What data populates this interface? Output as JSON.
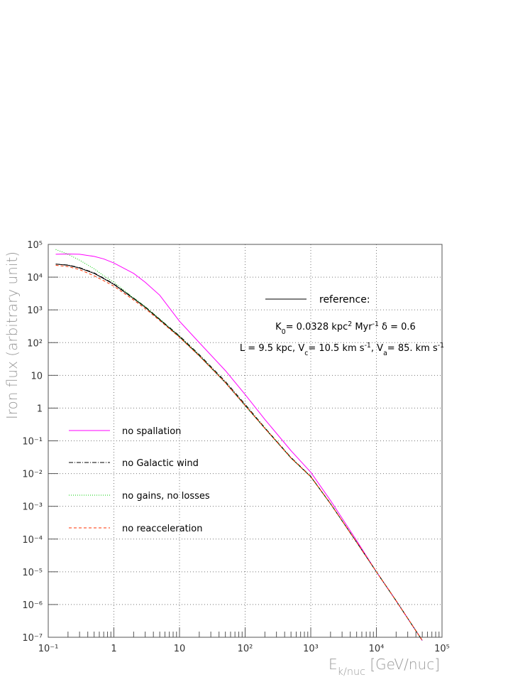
{
  "chart_data": {
    "type": "line",
    "x_label": [
      {
        "text": "E"
      },
      {
        "sub": "k/nuc"
      },
      {
        "text": " [GeV/nuc]"
      }
    ],
    "y_label": "Iron flux (arbitrary unit)",
    "annotations": [
      [
        {
          "text": "K"
        },
        {
          "sub": "0"
        },
        {
          "text": "= 0.0328 kpc"
        },
        {
          "sup": "2"
        },
        {
          "text": " Myr"
        },
        {
          "sup": "-1"
        },
        {
          "text": "   δ = 0.6"
        }
      ],
      [
        {
          "text": "L = 9.5 kpc, V"
        },
        {
          "sub": "c"
        },
        {
          "text": "= 10.5 km s"
        },
        {
          "sup": "-1"
        },
        {
          "text": ", V"
        },
        {
          "sub": "a"
        },
        {
          "text": "= 85. km s"
        },
        {
          "sup": "-1"
        }
      ]
    ],
    "x": [
      0.13,
      0.2,
      0.3,
      0.5,
      0.7,
      1,
      2,
      3,
      5,
      10,
      20,
      50,
      100,
      200,
      500,
      1000,
      2000,
      5000,
      10000,
      20000,
      50000
    ],
    "series": [
      {
        "name": "reference:",
        "color": "#000000",
        "values": [
          25000,
          23000,
          19000,
          13000,
          9000,
          6000,
          2200,
          1200,
          500,
          150,
          40,
          6,
          1.2,
          0.24,
          0.03,
          0.008,
          0.0012,
          8e-05,
          1e-05,
          1.3e-06,
          8e-08
        ]
      },
      {
        "name": "no spallation",
        "color": "#ff00ff",
        "values": [
          50000,
          51000,
          50000,
          43000,
          36000,
          27000,
          13000,
          7000,
          2800,
          450,
          100,
          14,
          2.6,
          0.45,
          0.05,
          0.011,
          0.0015,
          9e-05,
          1e-05,
          1.3e-06,
          8e-08
        ]
      },
      {
        "name": "no Galactic wind",
        "color": "#000000",
        "values": [
          25000,
          23500,
          19500,
          13500,
          9300,
          6200,
          2300,
          1250,
          520,
          160,
          43,
          6.5,
          1.3,
          0.25,
          0.031,
          0.0082,
          0.0012,
          8e-05,
          1e-05,
          1.3e-06,
          8e-08
        ]
      },
      {
        "name": "no gains, no losses",
        "color": "#00cc00",
        "values": [
          70000,
          50000,
          33000,
          18000,
          11000,
          7000,
          2300,
          1250,
          520,
          155,
          41,
          6.1,
          1.2,
          0.24,
          0.03,
          0.008,
          0.0012,
          8e-05,
          1e-05,
          1.3e-06,
          8e-08
        ]
      },
      {
        "name": "no reacceleration",
        "color": "#ff3300",
        "values": [
          23000,
          21000,
          17000,
          11000,
          7800,
          5300,
          2000,
          1100,
          470,
          145,
          39,
          6,
          1.2,
          0.24,
          0.03,
          0.008,
          0.0012,
          8e-05,
          1e-05,
          1.3e-06,
          8e-08
        ]
      }
    ],
    "log_x": true,
    "log_y": true,
    "grid": true,
    "xlim": [
      0.1,
      100000
    ],
    "ylim": [
      1e-07,
      100000
    ],
    "xticks": [
      {
        "value": 0.1,
        "label": "10⁻¹"
      },
      1,
      10,
      {
        "value": 100,
        "label": "10²"
      },
      {
        "value": 1000,
        "label": "10³"
      },
      {
        "value": 10000,
        "label": "10⁴"
      },
      {
        "value": 100000,
        "label": "10⁵"
      }
    ],
    "yticks": [
      {
        "value": 1e-07,
        "label": "10⁻⁷"
      },
      {
        "value": 1e-06,
        "label": "10⁻⁶"
      },
      {
        "value": 1e-05,
        "label": "10⁻⁵"
      },
      {
        "value": 0.0001,
        "label": "10⁻⁴"
      },
      {
        "value": 0.001,
        "label": "10⁻³"
      },
      {
        "value": 0.01,
        "label": "10⁻²"
      },
      {
        "value": 0.1,
        "label": "10⁻¹"
      },
      1,
      10,
      {
        "value": 100,
        "label": "10²"
      },
      {
        "value": 1000,
        "label": "10³"
      },
      {
        "value": 10000,
        "label": "10⁴"
      },
      {
        "value": 100000,
        "label": "10⁵"
      }
    ]
  }
}
